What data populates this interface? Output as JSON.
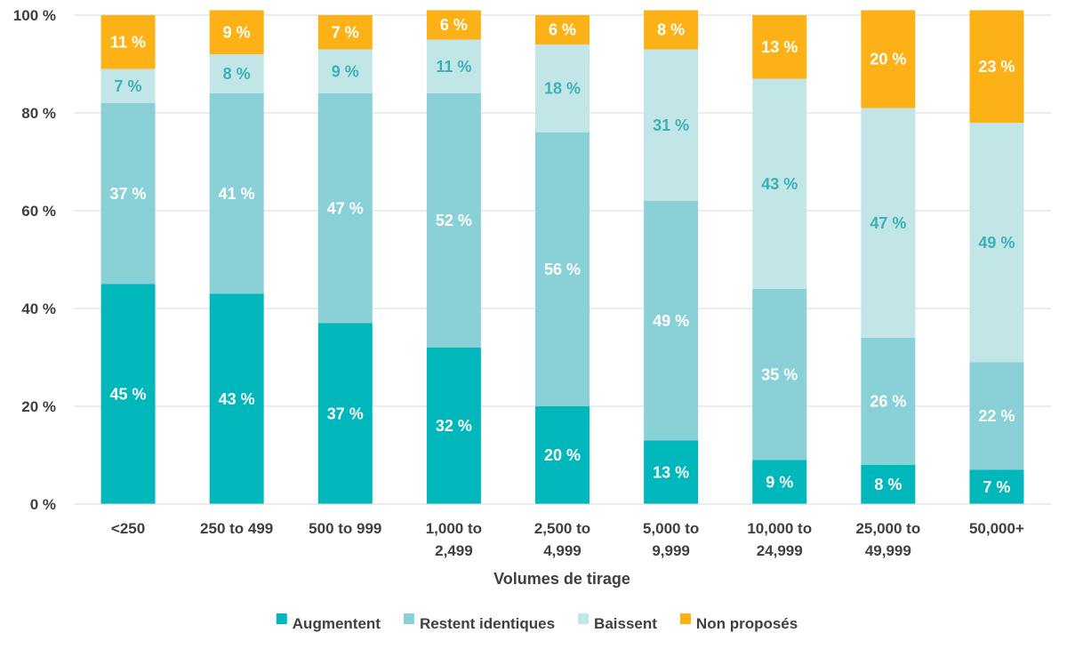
{
  "chart_data": {
    "type": "bar",
    "stacked": true,
    "categories": [
      [
        "<250"
      ],
      [
        "250 to 499"
      ],
      [
        "500 to 999"
      ],
      [
        "1,000 to",
        "2,499"
      ],
      [
        "2,500 to",
        "4,999"
      ],
      [
        "5,000 to",
        "9,999"
      ],
      [
        "10,000 to",
        "24,999"
      ],
      [
        "25,000 to",
        "49,999"
      ],
      [
        "50,000+"
      ]
    ],
    "series": [
      {
        "name": "Augmentent",
        "color": "#00b8bc",
        "label_color": "#ffffff",
        "values": [
          45,
          43,
          37,
          32,
          20,
          13,
          9,
          8,
          7
        ]
      },
      {
        "name": "Restent identiques",
        "color": "#89d1d6",
        "label_color": "#ffffff",
        "values": [
          37,
          41,
          47,
          52,
          56,
          49,
          35,
          26,
          22
        ]
      },
      {
        "name": "Baissent",
        "color": "#c2e6e8",
        "label_color": "#3cb1b5",
        "values": [
          7,
          8,
          9,
          11,
          18,
          31,
          43,
          47,
          49
        ]
      },
      {
        "name": "Non proposés",
        "color": "#fcb116",
        "label_color": "#ffffff",
        "values": [
          11,
          9,
          7,
          6,
          6,
          8,
          13,
          20,
          23
        ]
      }
    ],
    "value_suffix": " %",
    "xlabel": "Volumes de tirage",
    "ylabel": "",
    "ylim": [
      0,
      100
    ],
    "yticks": [
      0,
      20,
      40,
      60,
      80,
      100
    ],
    "ytick_labels": [
      "0 %",
      "20 %",
      "40 %",
      "60 %",
      "80 %",
      "100 %"
    ],
    "grid": true,
    "legend_position": "bottom"
  }
}
